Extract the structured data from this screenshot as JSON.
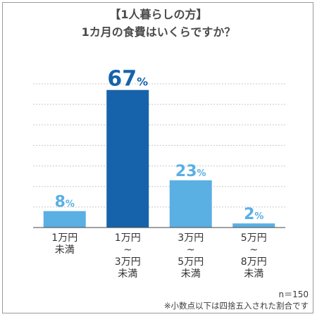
{
  "title": {
    "line1": "【1人暮らしの方】",
    "line2": "1カ月の食費はいくらですか？"
  },
  "chart_data": {
    "type": "bar",
    "categories": [
      [
        "1万円",
        "未満"
      ],
      [
        "1万円",
        "~",
        "3万円",
        "未満"
      ],
      [
        "3万円",
        "~",
        "5万円",
        "未満"
      ],
      [
        "5万円",
        "~",
        "8万円",
        "未満"
      ]
    ],
    "values": [
      8,
      67,
      23,
      2
    ],
    "value_unit": "%",
    "ylim": [
      0,
      70
    ],
    "grid": true,
    "colors": [
      "#5aafe3",
      "#1763ab",
      "#5aafe3",
      "#5aafe3"
    ],
    "label_colors": [
      "#5aafe3",
      "#1763ab",
      "#5aafe3",
      "#5aafe3"
    ]
  },
  "notes": {
    "sample": "n＝150",
    "footnote": "※小数点以下は四捨五入された割合です"
  }
}
